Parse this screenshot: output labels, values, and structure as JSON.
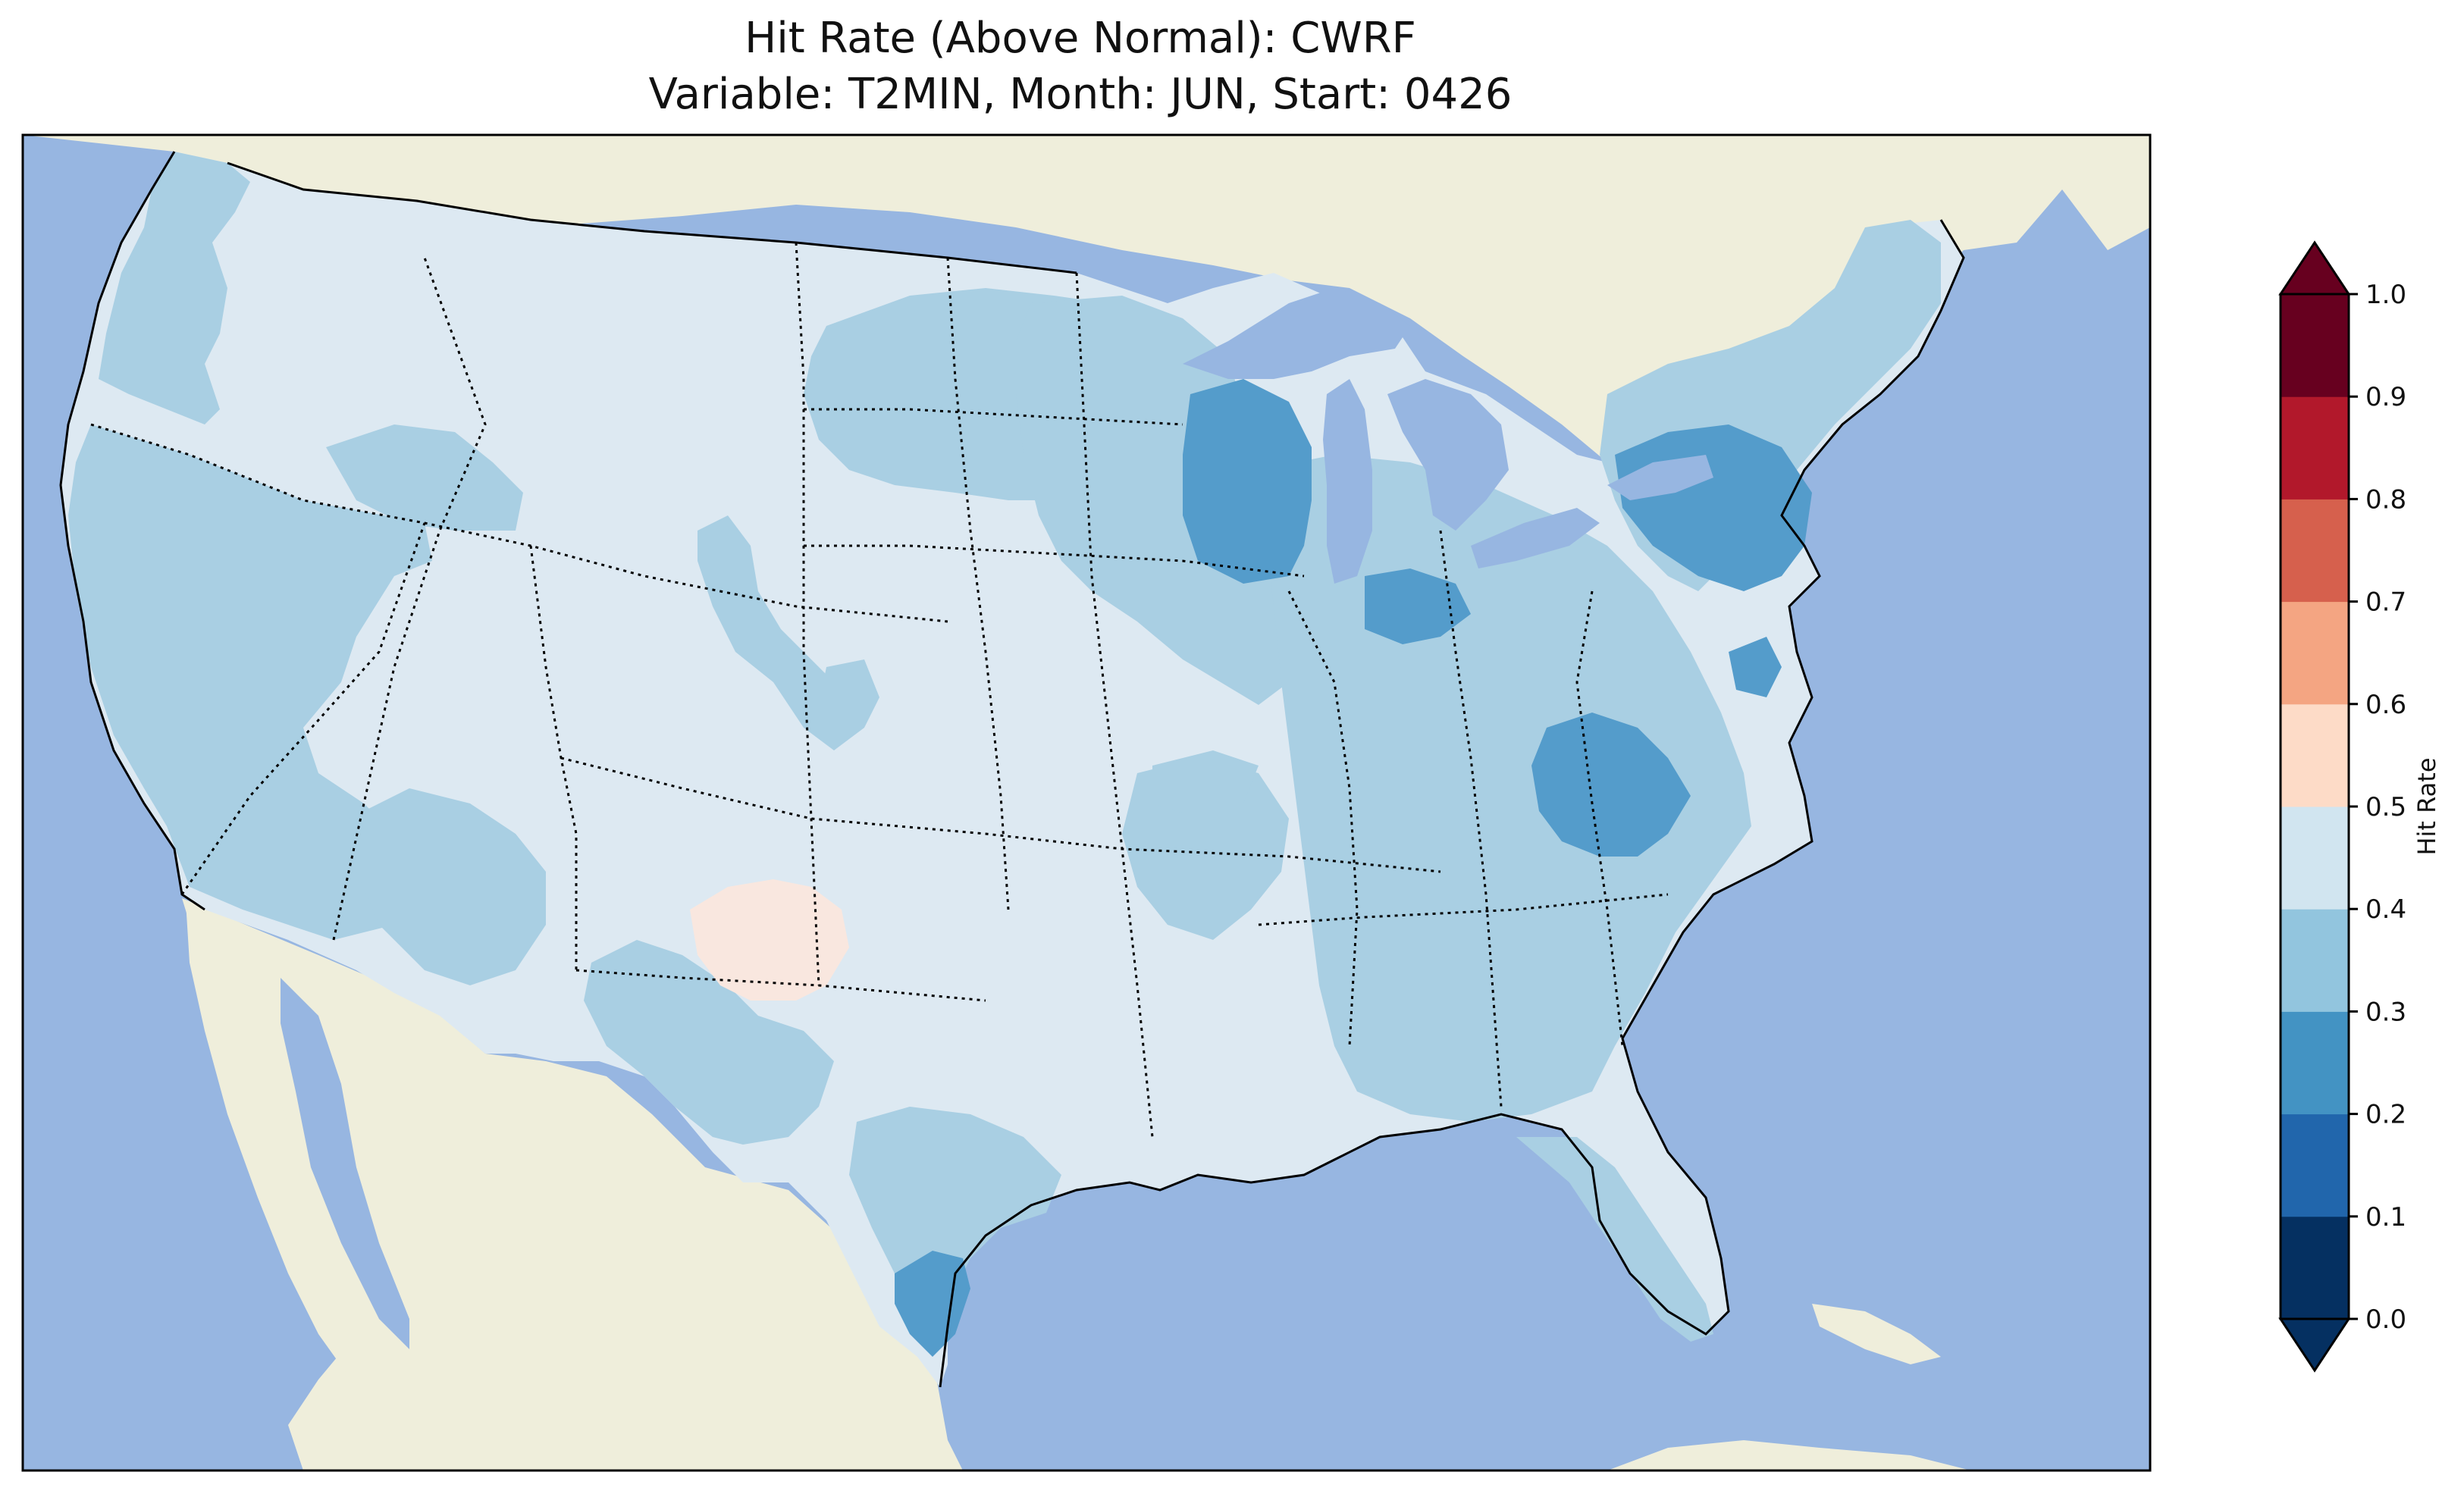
{
  "title": {
    "line1": "Hit Rate (Above Normal): CWRF",
    "line2": "Variable: T2MIN, Month: JUN, Start: 0426"
  },
  "colors": {
    "ocean": "#97b6e1",
    "land": "#efeedb",
    "c_0_0": "#053061",
    "c_0_1": "#2166ac",
    "c_0_2": "#4393c3",
    "c_0_3": "#92c5de",
    "c_0_4": "#d1e5f0",
    "c_0_5": "#fddbc7",
    "c_0_6": "#f4a582",
    "c_0_7": "#d6604d",
    "c_0_8": "#b2182b",
    "c_0_9": "#67001f",
    "map_bg": "#dde9f2",
    "bin03_fill": "#a9cfe3",
    "bin02_fill": "#549ccb",
    "bin05_fill": "#f9e7df"
  },
  "colorbar": {
    "label": "Hit Rate",
    "ticks": [
      "0.0",
      "0.1",
      "0.2",
      "0.3",
      "0.4",
      "0.5",
      "0.6",
      "0.7",
      "0.8",
      "0.9",
      "1.0"
    ]
  },
  "legend_bins": [
    {
      "from": 0.0,
      "to": 0.1
    },
    {
      "from": 0.1,
      "to": 0.2
    },
    {
      "from": 0.2,
      "to": 0.3
    },
    {
      "from": 0.3,
      "to": 0.4
    },
    {
      "from": 0.4,
      "to": 0.5
    },
    {
      "from": 0.5,
      "to": 0.6
    },
    {
      "from": 0.6,
      "to": 0.7
    },
    {
      "from": 0.7,
      "to": 0.8
    },
    {
      "from": 0.8,
      "to": 0.9
    },
    {
      "from": 0.9,
      "to": 1.0
    }
  ],
  "map_regions": [
    {
      "name": "pacific-northwest-coast",
      "bin": "0.3-0.4"
    },
    {
      "name": "california-nevada",
      "bin": "0.3-0.4"
    },
    {
      "name": "arizona-desert",
      "bin": "0.3-0.4"
    },
    {
      "name": "southern-idaho-oregon",
      "bin": "0.3-0.4"
    },
    {
      "name": "dakotas",
      "bin": "0.3-0.4"
    },
    {
      "name": "upper-midwest",
      "bin": "0.3-0.4"
    },
    {
      "name": "ohio-valley-southeast",
      "bin": "0.3-0.4"
    },
    {
      "name": "northeast",
      "bin": "0.3-0.4"
    },
    {
      "name": "south-texas",
      "bin": "0.3-0.4"
    },
    {
      "name": "florida",
      "bin": "0.3-0.4"
    },
    {
      "name": "wisconsin",
      "bin": "0.2-0.3"
    },
    {
      "name": "new-york-pennsylvania",
      "bin": "0.2-0.3"
    },
    {
      "name": "indiana-ohio",
      "bin": "0.2-0.3"
    },
    {
      "name": "appalachian",
      "bin": "0.2-0.3"
    },
    {
      "name": "texas-gulf-coast",
      "bin": "0.2-0.3"
    },
    {
      "name": "new-mexico",
      "bin": "0.5-0.6"
    }
  ]
}
